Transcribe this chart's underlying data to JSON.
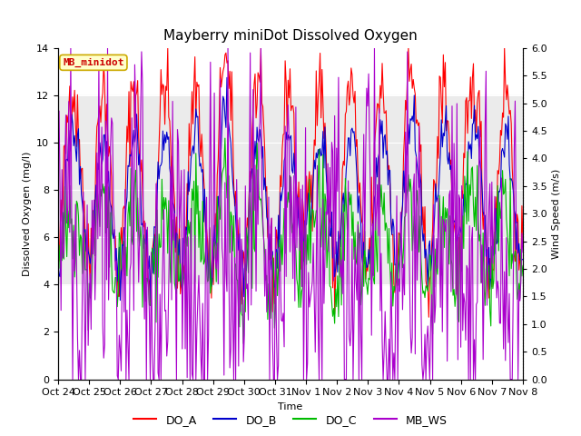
{
  "title": "Mayberry miniDot Dissolved Oxygen",
  "ylabel_left": "Dissolved Oxygen (mg/l)",
  "ylabel_right": "Wind Speed (m/s)",
  "xlabel": "Time",
  "ylim_left": [
    0,
    14
  ],
  "ylim_right": [
    0,
    6
  ],
  "shade_band": [
    4,
    12
  ],
  "shade_color": "#d3d3d3",
  "legend_station": "MB_minidot",
  "legend_station_bg": "#ffffcc",
  "legend_station_edge": "#ccaa00",
  "legend_station_text_color": "#cc0000",
  "xtick_labels": [
    "Oct 24",
    "Oct 25",
    "Oct 26",
    "Oct 27",
    "Oct 28",
    "Oct 29",
    "Oct 30",
    "Oct 31",
    "Nov 1",
    "Nov 2",
    "Nov 3",
    "Nov 4",
    "Nov 5",
    "Nov 6",
    "Nov 7",
    "Nov 8"
  ],
  "n_points": 480,
  "background_color": "#ffffff",
  "line_colors": {
    "DO_A": "#ff0000",
    "DO_B": "#0000cc",
    "DO_C": "#00bb00",
    "MB_WS": "#aa00cc"
  },
  "line_widths": {
    "DO_A": 0.8,
    "DO_B": 0.8,
    "DO_C": 0.8,
    "MB_WS": 0.8
  },
  "yticks_left": [
    0,
    2,
    4,
    6,
    8,
    10,
    12,
    14
  ],
  "yticks_right": [
    0.0,
    0.5,
    1.0,
    1.5,
    2.0,
    2.5,
    3.0,
    3.5,
    4.0,
    4.5,
    5.0,
    5.5,
    6.0
  ],
  "title_fontsize": 11,
  "axis_label_fontsize": 8,
  "tick_fontsize": 8
}
